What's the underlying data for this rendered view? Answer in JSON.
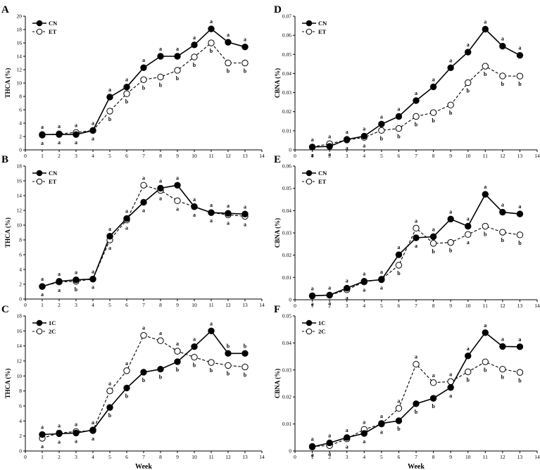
{
  "chart_data": [
    {
      "panel": "A",
      "type": "line",
      "ylabel": "THCA (%)",
      "xlabel": "",
      "xlim": [
        0,
        14
      ],
      "ylim": [
        0,
        20
      ],
      "yticks": [
        0,
        2,
        4,
        6,
        8,
        10,
        12,
        14,
        16,
        18,
        20
      ],
      "x": [
        1,
        2,
        3,
        4,
        5,
        6,
        7,
        8,
        9,
        10,
        11,
        12,
        13
      ],
      "legend_position": "top-left",
      "series": [
        {
          "name": "CN",
          "style": "solid-filled",
          "values": [
            2.3,
            2.3,
            2.3,
            2.9,
            7.9,
            9.4,
            12.3,
            14.0,
            14.0,
            15.7,
            18.1,
            16.1,
            15.4
          ],
          "labels": [
            "a",
            "a",
            "a",
            "a",
            "a",
            "a",
            "a",
            "a",
            "a",
            "a",
            "a",
            "a",
            "a"
          ]
        },
        {
          "name": "ET",
          "style": "dashed-open",
          "values": [
            2.2,
            2.4,
            2.6,
            2.9,
            5.8,
            8.4,
            10.5,
            10.9,
            11.9,
            13.9,
            16.0,
            13.0,
            13.0
          ],
          "labels": [
            "a",
            "a",
            "a",
            "a",
            "b",
            "b",
            "b",
            "b",
            "b",
            "b",
            "b",
            "b",
            "b"
          ]
        }
      ]
    },
    {
      "panel": "B",
      "type": "line",
      "ylabel": "THCA (%)",
      "xlabel": "",
      "xlim": [
        0,
        14
      ],
      "ylim": [
        0,
        18
      ],
      "yticks": [
        0,
        2,
        4,
        6,
        8,
        10,
        12,
        14,
        16,
        18
      ],
      "x": [
        1,
        2,
        3,
        4,
        5,
        6,
        7,
        8,
        9,
        10,
        11,
        12,
        13
      ],
      "legend_position": "top-left",
      "series": [
        {
          "name": "CN",
          "style": "solid-filled",
          "values": [
            1.7,
            2.4,
            2.6,
            2.7,
            8.5,
            10.9,
            13.1,
            15.0,
            15.4,
            12.5,
            11.7,
            11.6,
            11.5
          ],
          "labels": [
            "a",
            "a",
            "a",
            "a",
            "a",
            "a",
            "a",
            "a",
            "a",
            "a",
            "a",
            "a",
            "a"
          ]
        },
        {
          "name": "ET",
          "style": "dashed-open",
          "values": [
            1.7,
            2.3,
            2.4,
            2.7,
            8.0,
            10.7,
            15.4,
            14.7,
            13.3,
            12.5,
            11.7,
            11.4,
            11.2
          ],
          "labels": [
            "a",
            "a",
            "b",
            "a",
            "a",
            "a",
            "a",
            "a",
            "a",
            "a",
            "a",
            "a",
            "a"
          ]
        }
      ]
    },
    {
      "panel": "C",
      "type": "line",
      "ylabel": "THCA (%)",
      "xlabel": "Week",
      "xlim": [
        0,
        14
      ],
      "ylim": [
        0,
        18
      ],
      "yticks": [
        0,
        2,
        4,
        6,
        8,
        10,
        12,
        14,
        16,
        18
      ],
      "x": [
        1,
        2,
        3,
        4,
        5,
        6,
        7,
        8,
        9,
        10,
        11,
        12,
        13
      ],
      "xticks": [
        0,
        1,
        2,
        3,
        4,
        5,
        6,
        7,
        8,
        9,
        10,
        11,
        12,
        13,
        14
      ],
      "legend_position": "top-left",
      "series": [
        {
          "name": "1C",
          "style": "solid-filled",
          "values": [
            2.2,
            2.3,
            2.4,
            2.8,
            5.8,
            8.4,
            10.5,
            10.9,
            11.9,
            13.9,
            16.0,
            13.0,
            13.0
          ],
          "labels": [
            "a",
            "a",
            "a",
            "a",
            "b",
            "b",
            "b",
            "b",
            "b",
            "a",
            "a",
            "b",
            "b"
          ]
        },
        {
          "name": "2C",
          "style": "dashed-open",
          "values": [
            1.7,
            2.4,
            2.6,
            2.7,
            8.0,
            10.7,
            15.4,
            14.7,
            13.3,
            12.5,
            11.8,
            11.4,
            11.2
          ],
          "labels": [
            "a",
            "a",
            "a",
            "a",
            "a",
            "a",
            "a",
            "a",
            "a",
            "b",
            "b",
            "b",
            "b"
          ]
        }
      ]
    },
    {
      "panel": "D",
      "type": "line",
      "ylabel": "CBNA (%)",
      "xlabel": "",
      "xlim": [
        0,
        14
      ],
      "ylim": [
        0,
        0.07
      ],
      "yticks": [
        0,
        0.01,
        0.02,
        0.03,
        0.04,
        0.05,
        0.06,
        0.07
      ],
      "ytick_labels": [
        "0",
        "0.01",
        "0.02",
        "0.03",
        "0.04",
        "0.05",
        "0.06",
        "0.07"
      ],
      "x": [
        1,
        2,
        3,
        4,
        5,
        6,
        7,
        8,
        9,
        10,
        11,
        12,
        13
      ],
      "legend_position": "top-left",
      "series": [
        {
          "name": "CN",
          "style": "solid-filled",
          "values": [
            0.0015,
            0.0018,
            0.0055,
            0.0072,
            0.0135,
            0.0175,
            0.0258,
            0.033,
            0.043,
            0.0512,
            0.0632,
            0.0543,
            0.0495
          ],
          "labels": [
            "a",
            "a",
            "a",
            "a",
            "a",
            "a",
            "a",
            "a",
            "a",
            "a",
            "a",
            "a",
            "a"
          ]
        },
        {
          "name": "ET",
          "style": "dashed-open",
          "values": [
            0.0015,
            0.0032,
            0.0052,
            0.0065,
            0.0102,
            0.0112,
            0.0175,
            0.0195,
            0.0235,
            0.0352,
            0.0438,
            0.0387,
            0.0386
          ],
          "labels": [
            "a",
            "a",
            "a",
            "a",
            "b",
            "b",
            "b",
            "b",
            "b",
            "b",
            "b",
            "b",
            "b"
          ]
        }
      ]
    },
    {
      "panel": "E",
      "type": "line",
      "ylabel": "CBNA (%)",
      "xlabel": "",
      "xlim": [
        0,
        14
      ],
      "ylim": [
        0,
        0.06
      ],
      "yticks": [
        0,
        0.01,
        0.02,
        0.03,
        0.04,
        0.05,
        0.06
      ],
      "ytick_labels": [
        "0",
        "0.01",
        "0.02",
        "0.03",
        "0.04",
        "0.05",
        "0.06"
      ],
      "x": [
        1,
        2,
        3,
        4,
        5,
        6,
        7,
        8,
        9,
        10,
        11,
        12,
        13
      ],
      "legend_position": "top-left",
      "series": [
        {
          "name": "CN",
          "style": "solid-filled",
          "values": [
            0.0018,
            0.0021,
            0.0052,
            0.0083,
            0.009,
            0.0202,
            0.0278,
            0.0283,
            0.0362,
            0.033,
            0.0473,
            0.0393,
            0.0385
          ],
          "labels": [
            "a",
            "a",
            "a",
            "a",
            "a",
            "a",
            "a",
            "a",
            "a",
            "a",
            "a",
            "a",
            "a"
          ]
        },
        {
          "name": "ET",
          "style": "dashed-open",
          "values": [
            0.0017,
            0.002,
            0.0045,
            0.008,
            0.0092,
            0.0155,
            0.0321,
            0.0253,
            0.0257,
            0.0293,
            0.033,
            0.0303,
            0.0291
          ],
          "labels": [
            "a",
            "a",
            "a",
            "a",
            "a",
            "b",
            "a",
            "b",
            "b",
            "a",
            "b",
            "b",
            "b"
          ]
        }
      ]
    },
    {
      "panel": "F",
      "type": "line",
      "ylabel": "CBNA (%)",
      "xlabel": "Week",
      "xlim": [
        0,
        14
      ],
      "ylim": [
        0,
        0.05
      ],
      "yticks": [
        0,
        0.01,
        0.02,
        0.03,
        0.04,
        0.05
      ],
      "ytick_labels": [
        "0",
        "0.01",
        "0.02",
        "0.03",
        "0.04",
        "0.05"
      ],
      "x": [
        1,
        2,
        3,
        4,
        5,
        6,
        7,
        8,
        9,
        10,
        11,
        12,
        13
      ],
      "xticks": [
        0,
        1,
        2,
        3,
        4,
        5,
        6,
        7,
        8,
        9,
        10,
        11,
        12,
        13,
        14
      ],
      "legend_position": "top-left",
      "series": [
        {
          "name": "1C",
          "style": "solid-filled",
          "values": [
            0.0015,
            0.003,
            0.005,
            0.0065,
            0.0102,
            0.0112,
            0.0175,
            0.0195,
            0.0235,
            0.0352,
            0.0438,
            0.0387,
            0.0386
          ],
          "labels": [
            "a",
            "a",
            "a",
            "a",
            "a",
            "b",
            "b",
            "b",
            "a",
            "a",
            "a",
            "a",
            "a"
          ]
        },
        {
          "name": "2C",
          "style": "dashed-open",
          "values": [
            0.0017,
            0.002,
            0.0045,
            0.008,
            0.01,
            0.0158,
            0.0321,
            0.0253,
            0.0257,
            0.0293,
            0.033,
            0.0303,
            0.0291
          ],
          "labels": [
            "a",
            "a",
            "a",
            "a",
            "a",
            "a",
            "a",
            "a",
            "a",
            "b",
            "b",
            "b",
            "b"
          ]
        }
      ]
    }
  ]
}
